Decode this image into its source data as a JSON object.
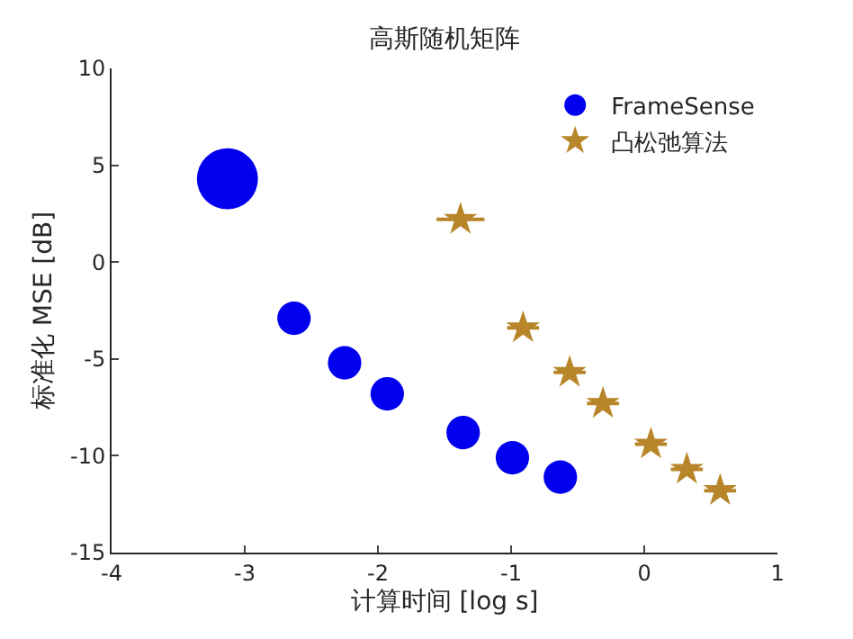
{
  "chart_data": {
    "type": "scatter",
    "title": "高斯随机矩阵",
    "xlabel": "计算时间 [log s]",
    "ylabel": "标准化 MSE [dB]",
    "xlim": [
      -4,
      1
    ],
    "xticks": [
      -4,
      -3,
      -2,
      -1,
      0,
      1
    ],
    "ylim": [
      -15,
      10
    ],
    "yticks": [
      -15,
      -10,
      -5,
      0,
      5,
      10
    ],
    "grid": false,
    "legend": "top right",
    "series": [
      {
        "name": "FrameSense",
        "type": "bubble",
        "color": "#0000ee",
        "marker": "circle",
        "x": [
          -3.13,
          -2.63,
          -2.25,
          -1.93,
          -1.36,
          -0.99,
          -0.63
        ],
        "values": [
          4.3,
          -2.9,
          -5.2,
          -6.8,
          -8.8,
          -10.1,
          -11.1
        ],
        "sizes": [
          1,
          0.3,
          0.3,
          0.3,
          0.3,
          0.3,
          0.3
        ]
      },
      {
        "name": "凸松弛算法",
        "color": "#b8862a",
        "marker": "star",
        "x": [
          -1.38,
          -0.91,
          -0.56,
          -0.31,
          0.05,
          0.32,
          0.57
        ],
        "values": [
          2.2,
          -3.4,
          -5.7,
          -7.3,
          -9.4,
          -10.7,
          -11.8
        ],
        "xerrors": [
          0.18,
          0.12,
          0.12,
          0.12,
          0.12,
          0.12,
          0.12
        ]
      }
    ]
  }
}
